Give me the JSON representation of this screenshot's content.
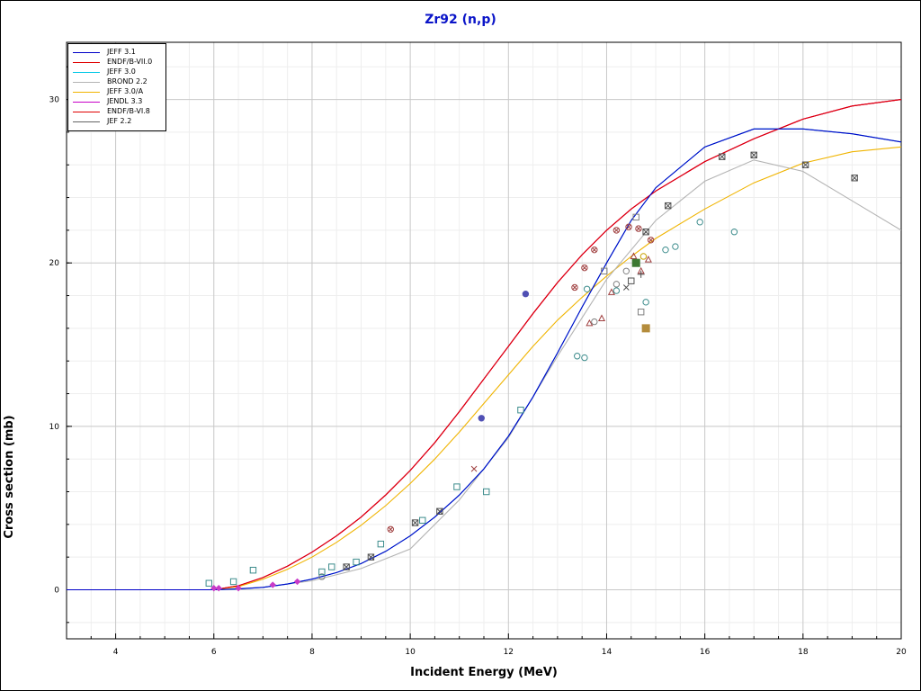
{
  "chart_data": {
    "type": "line",
    "title": "Zr92 (n,p)",
    "xlabel": "Incident Energy (MeV)",
    "ylabel": "Cross section (mb)",
    "xlim": [
      3,
      20
    ],
    "ylim": [
      -3,
      33.5
    ],
    "xticks": [
      4,
      6,
      8,
      10,
      12,
      14,
      16,
      18,
      20
    ],
    "yticks": [
      0,
      10,
      20,
      30
    ],
    "grid": true,
    "legend_position": "top-left",
    "series": [
      {
        "name": "JEFF 3.1",
        "color": "#0000c8",
        "x": [
          3,
          6.0,
          6.5,
          7.0,
          7.5,
          8.0,
          8.5,
          9.0,
          9.5,
          10.0,
          10.5,
          11.0,
          11.5,
          12.0,
          12.5,
          13.0,
          13.5,
          14.0,
          14.5,
          15.0,
          16.0,
          17.0,
          18.0,
          19.0,
          20.0
        ],
        "y": [
          0,
          0,
          0.05,
          0.15,
          0.35,
          0.65,
          1.05,
          1.6,
          2.35,
          3.3,
          4.45,
          5.8,
          7.4,
          9.4,
          11.8,
          14.5,
          17.3,
          20.0,
          22.6,
          24.6,
          27.1,
          28.2,
          28.2,
          27.9,
          27.4
        ]
      },
      {
        "name": "ENDF/B-VII.0",
        "color": "#e00000",
        "x": [
          3,
          6.0,
          6.5,
          7.0,
          7.5,
          8.0,
          8.5,
          9.0,
          9.5,
          10.0,
          10.5,
          11.0,
          11.5,
          12.0,
          12.5,
          13.0,
          13.5,
          14.0,
          14.5,
          15.0,
          16.0,
          17.0,
          18.0,
          19.0,
          20.0
        ],
        "y": [
          0,
          0,
          0.25,
          0.75,
          1.45,
          2.3,
          3.3,
          4.45,
          5.8,
          7.3,
          9.0,
          10.9,
          12.9,
          14.9,
          16.9,
          18.8,
          20.5,
          22.0,
          23.3,
          24.4,
          26.2,
          27.6,
          28.8,
          29.6,
          30.0
        ]
      },
      {
        "name": "JEFF 3.0",
        "color": "#00c8e6",
        "x": [
          3,
          6.0,
          6.5,
          7.0,
          7.5,
          8.0,
          8.5,
          9.0,
          9.5,
          10.0,
          10.5,
          11.0,
          11.5,
          12.0,
          12.5,
          13.0,
          13.5,
          14.0,
          14.5,
          15.0,
          16.0,
          17.0,
          18.0,
          19.0,
          20.0
        ],
        "y": [
          0,
          0,
          0.05,
          0.15,
          0.35,
          0.65,
          1.05,
          1.6,
          2.35,
          3.3,
          4.45,
          5.8,
          7.4,
          9.4,
          11.8,
          14.5,
          17.3,
          20.0,
          22.6,
          24.6,
          27.1,
          28.2,
          28.2,
          27.9,
          27.4
        ]
      },
      {
        "name": "BROND 2.2",
        "color": "#b4b4b4",
        "x": [
          3,
          6.0,
          7.0,
          8.0,
          9.0,
          10.0,
          11.0,
          12.0,
          13.0,
          14.0,
          15.0,
          16.0,
          17.0,
          18.0,
          19.0,
          20.0
        ],
        "y": [
          0,
          0,
          0.15,
          0.55,
          1.3,
          2.5,
          5.5,
          9.3,
          14.3,
          19.0,
          22.6,
          25.0,
          26.3,
          25.6,
          23.8,
          22.0
        ]
      },
      {
        "name": "JEFF 3.0/A",
        "color": "#f0b400",
        "x": [
          3,
          6.0,
          6.5,
          7.0,
          7.5,
          8.0,
          8.5,
          9.0,
          9.5,
          10.0,
          10.5,
          11.0,
          11.5,
          12.0,
          12.5,
          13.0,
          13.5,
          14.0,
          14.5,
          15.0,
          16.0,
          17.0,
          18.0,
          19.0,
          20.0
        ],
        "y": [
          0,
          0,
          0.2,
          0.65,
          1.25,
          2.0,
          2.9,
          3.95,
          5.15,
          6.5,
          8.0,
          9.65,
          11.4,
          13.15,
          14.9,
          16.5,
          17.9,
          19.2,
          20.4,
          21.5,
          23.3,
          24.9,
          26.1,
          26.8,
          27.1
        ]
      },
      {
        "name": "JENDL 3.3",
        "color": "#c800c8",
        "x": [
          3,
          6.0,
          6.5,
          7.0,
          7.5,
          8.0,
          8.5,
          9.0,
          9.5,
          10.0,
          10.5,
          11.0,
          11.5,
          12.0,
          12.5,
          13.0,
          13.5,
          14.0,
          14.5,
          15.0,
          16.0,
          17.0,
          18.0,
          19.0,
          20.0
        ],
        "y": [
          0,
          0,
          0.25,
          0.75,
          1.45,
          2.3,
          3.3,
          4.45,
          5.8,
          7.3,
          9.0,
          10.9,
          12.9,
          14.9,
          16.9,
          18.8,
          20.5,
          22.0,
          23.3,
          24.4,
          26.2,
          27.6,
          28.8,
          29.6,
          30.0
        ]
      },
      {
        "name": "ENDF/B-VI.8",
        "color": "#e00000",
        "x": [
          3,
          6.0,
          6.5,
          7.0,
          7.5,
          8.0,
          8.5,
          9.0,
          9.5,
          10.0,
          10.5,
          11.0,
          11.5,
          12.0,
          12.5,
          13.0,
          13.5,
          14.0,
          14.5,
          15.0,
          16.0,
          17.0,
          18.0,
          19.0,
          20.0
        ],
        "y": [
          0,
          0,
          0.25,
          0.75,
          1.45,
          2.3,
          3.3,
          4.45,
          5.8,
          7.3,
          9.0,
          10.9,
          12.9,
          14.9,
          16.9,
          18.8,
          20.5,
          22.0,
          23.3,
          24.4,
          26.2,
          27.6,
          28.8,
          29.6,
          30.0
        ]
      },
      {
        "name": "JEF 2.2",
        "color": "#646464",
        "x": [],
        "y": []
      }
    ],
    "experimental_points": [
      {
        "x": 5.9,
        "y": 0.4,
        "marker": "square",
        "color": "#3c8c8c"
      },
      {
        "x": 6.4,
        "y": 0.5,
        "marker": "square",
        "color": "#3c8c8c"
      },
      {
        "x": 6.8,
        "y": 1.2,
        "marker": "square",
        "color": "#3c8c8c"
      },
      {
        "x": 6.0,
        "y": 0.1,
        "marker": "diamond",
        "color": "#c83cc8"
      },
      {
        "x": 6.1,
        "y": 0.1,
        "marker": "diamond",
        "color": "#c83cc8"
      },
      {
        "x": 6.5,
        "y": 0.1,
        "marker": "diamond",
        "color": "#c83cc8"
      },
      {
        "x": 7.2,
        "y": 0.3,
        "marker": "diamond",
        "color": "#c83cc8"
      },
      {
        "x": 7.7,
        "y": 0.5,
        "marker": "diamond",
        "color": "#c83cc8"
      },
      {
        "x": 8.2,
        "y": 0.8,
        "marker": "circle",
        "color": "#808080"
      },
      {
        "x": 8.2,
        "y": 1.1,
        "marker": "square",
        "color": "#3c8c8c"
      },
      {
        "x": 8.4,
        "y": 1.4,
        "marker": "square",
        "color": "#3c8c8c"
      },
      {
        "x": 8.7,
        "y": 1.4,
        "marker": "xsquare",
        "color": "#505050"
      },
      {
        "x": 8.9,
        "y": 1.7,
        "marker": "square",
        "color": "#3c8c8c"
      },
      {
        "x": 9.2,
        "y": 2.0,
        "marker": "xsquare",
        "color": "#505050"
      },
      {
        "x": 9.4,
        "y": 2.8,
        "marker": "square",
        "color": "#3c8c8c"
      },
      {
        "x": 9.6,
        "y": 3.7,
        "marker": "xcircle",
        "color": "#a04040"
      },
      {
        "x": 10.1,
        "y": 4.1,
        "marker": "xsquare",
        "color": "#505050"
      },
      {
        "x": 10.25,
        "y": 4.25,
        "marker": "square",
        "color": "#3c8c8c"
      },
      {
        "x": 10.6,
        "y": 4.8,
        "marker": "xsquare",
        "color": "#505050"
      },
      {
        "x": 10.95,
        "y": 6.3,
        "marker": "square",
        "color": "#3c8c8c"
      },
      {
        "x": 11.3,
        "y": 7.4,
        "marker": "x",
        "color": "#a04040"
      },
      {
        "x": 11.45,
        "y": 10.5,
        "marker": "dot",
        "color": "#5050b4"
      },
      {
        "x": 11.55,
        "y": 6.0,
        "marker": "square",
        "color": "#3c8c8c"
      },
      {
        "x": 12.25,
        "y": 11.0,
        "marker": "square",
        "color": "#3c8c8c"
      },
      {
        "x": 12.35,
        "y": 18.1,
        "marker": "dot",
        "color": "#5050b4"
      },
      {
        "x": 13.35,
        "y": 18.5,
        "marker": "xcircle",
        "color": "#a04040"
      },
      {
        "x": 13.4,
        "y": 14.3,
        "marker": "circle",
        "color": "#3c8c8c"
      },
      {
        "x": 13.55,
        "y": 14.2,
        "marker": "circle",
        "color": "#3c8c8c"
      },
      {
        "x": 13.55,
        "y": 19.7,
        "marker": "xcircle",
        "color": "#a04040"
      },
      {
        "x": 13.6,
        "y": 18.4,
        "marker": "circle",
        "color": "#3c8c8c"
      },
      {
        "x": 13.65,
        "y": 16.3,
        "marker": "triangle",
        "color": "#a04040"
      },
      {
        "x": 13.75,
        "y": 20.8,
        "marker": "xcircle",
        "color": "#a04040"
      },
      {
        "x": 13.75,
        "y": 16.4,
        "marker": "circle",
        "color": "#808080"
      },
      {
        "x": 13.9,
        "y": 16.6,
        "marker": "triangle",
        "color": "#a04040"
      },
      {
        "x": 13.95,
        "y": 19.5,
        "marker": "square",
        "color": "#808080"
      },
      {
        "x": 14.1,
        "y": 18.2,
        "marker": "triangle",
        "color": "#a04040"
      },
      {
        "x": 14.2,
        "y": 18.3,
        "marker": "circle",
        "color": "#3c8c8c"
      },
      {
        "x": 14.2,
        "y": 18.7,
        "marker": "circle",
        "color": "#808080"
      },
      {
        "x": 14.2,
        "y": 22.0,
        "marker": "xcircle",
        "color": "#a04040"
      },
      {
        "x": 14.4,
        "y": 19.5,
        "marker": "circle",
        "color": "#808080"
      },
      {
        "x": 14.4,
        "y": 18.5,
        "marker": "x",
        "color": "#505050"
      },
      {
        "x": 14.45,
        "y": 22.2,
        "marker": "xcircle",
        "color": "#a04040"
      },
      {
        "x": 14.5,
        "y": 18.9,
        "marker": "square",
        "color": "#505050"
      },
      {
        "x": 14.55,
        "y": 20.4,
        "marker": "triangle",
        "color": "#a04040"
      },
      {
        "x": 14.6,
        "y": 20.0,
        "marker": "bigsquare",
        "color": "#3c7832"
      },
      {
        "x": 14.6,
        "y": 22.8,
        "marker": "square",
        "color": "#808080"
      },
      {
        "x": 14.65,
        "y": 22.1,
        "marker": "xcircle",
        "color": "#a04040"
      },
      {
        "x": 14.7,
        "y": 19.5,
        "marker": "triangle",
        "color": "#a04040"
      },
      {
        "x": 14.7,
        "y": 19.3,
        "marker": "plus",
        "color": "#505050"
      },
      {
        "x": 14.7,
        "y": 17.0,
        "marker": "square",
        "color": "#808080"
      },
      {
        "x": 14.75,
        "y": 20.4,
        "marker": "circle",
        "color": "#c8a000"
      },
      {
        "x": 14.8,
        "y": 17.6,
        "marker": "circle",
        "color": "#3c8c8c"
      },
      {
        "x": 14.8,
        "y": 21.9,
        "marker": "xsquare",
        "color": "#505050"
      },
      {
        "x": 14.8,
        "y": 16.0,
        "marker": "bigsquare",
        "color": "#b48c3c"
      },
      {
        "x": 14.85,
        "y": 20.2,
        "marker": "triangle",
        "color": "#a04040"
      },
      {
        "x": 14.9,
        "y": 21.4,
        "marker": "xcircle",
        "color": "#a04040"
      },
      {
        "x": 15.2,
        "y": 20.8,
        "marker": "circle",
        "color": "#3c8c8c"
      },
      {
        "x": 15.25,
        "y": 23.5,
        "marker": "xsquare",
        "color": "#505050"
      },
      {
        "x": 15.4,
        "y": 21.0,
        "marker": "circle",
        "color": "#3c8c8c"
      },
      {
        "x": 15.9,
        "y": 22.5,
        "marker": "circle",
        "color": "#3c8c8c"
      },
      {
        "x": 16.35,
        "y": 26.5,
        "marker": "xsquare",
        "color": "#505050"
      },
      {
        "x": 16.6,
        "y": 21.9,
        "marker": "circle",
        "color": "#3c8c8c"
      },
      {
        "x": 17.0,
        "y": 26.6,
        "marker": "xsquare",
        "color": "#505050"
      },
      {
        "x": 18.05,
        "y": 26.0,
        "marker": "xsquare",
        "color": "#505050"
      },
      {
        "x": 19.05,
        "y": 25.2,
        "marker": "xsquare",
        "color": "#505050"
      }
    ]
  }
}
